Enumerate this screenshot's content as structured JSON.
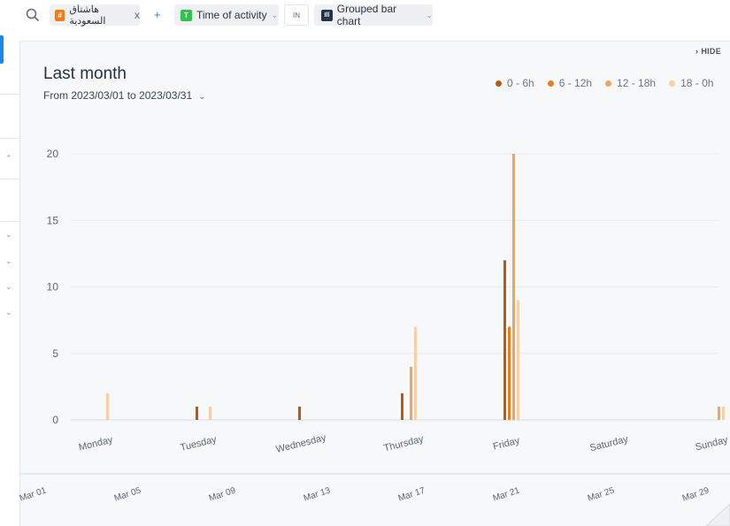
{
  "toolbar": {
    "search_icon": "search-icon",
    "filter": {
      "label": "هاشتاق السعودية",
      "badge": "#",
      "badge_color": "#f07d1a",
      "remove": "x"
    },
    "add": "+",
    "dimension": {
      "label": "Time of activity",
      "badge": "T",
      "badge_color": "#2ec44a"
    },
    "operator": "IN",
    "chart_type": {
      "label": "Grouped bar chart",
      "badge": "Ill",
      "badge_color": "#243447"
    }
  },
  "panel": {
    "hide_label": "HIDE",
    "title": "Last month",
    "range": "From 2023/03/01 to 2023/03/31"
  },
  "chart_data": {
    "type": "bar",
    "categories": [
      "Monday",
      "Tuesday",
      "Wednesday",
      "Thursday",
      "Friday",
      "Saturday",
      "Sunday"
    ],
    "series": [
      {
        "name": "0 - 6h",
        "color": "#b65a10",
        "values": [
          0,
          1,
          1,
          2,
          12,
          0,
          0
        ]
      },
      {
        "name": "6 - 12h",
        "color": "#ee7a18",
        "values": [
          0,
          0,
          0,
          0,
          7,
          0,
          0
        ]
      },
      {
        "name": "12 - 18h",
        "color": "#f3a35b",
        "values": [
          0,
          0,
          0,
          4,
          20,
          0,
          1
        ]
      },
      {
        "name": "18 - 0h",
        "color": "#f8cfa5",
        "values": [
          2,
          1,
          0,
          7,
          9,
          0,
          1
        ]
      }
    ],
    "y_ticks": [
      "0",
      "5",
      "10",
      "15",
      "20"
    ],
    "ylim": [
      0,
      20
    ],
    "grid": true,
    "legend": "top-right"
  },
  "timeline": {
    "labels": [
      "Mar 01",
      "Mar 05",
      "Mar 09",
      "Mar 13",
      "Mar 17",
      "Mar 21",
      "Mar 25",
      "Mar 29"
    ]
  }
}
